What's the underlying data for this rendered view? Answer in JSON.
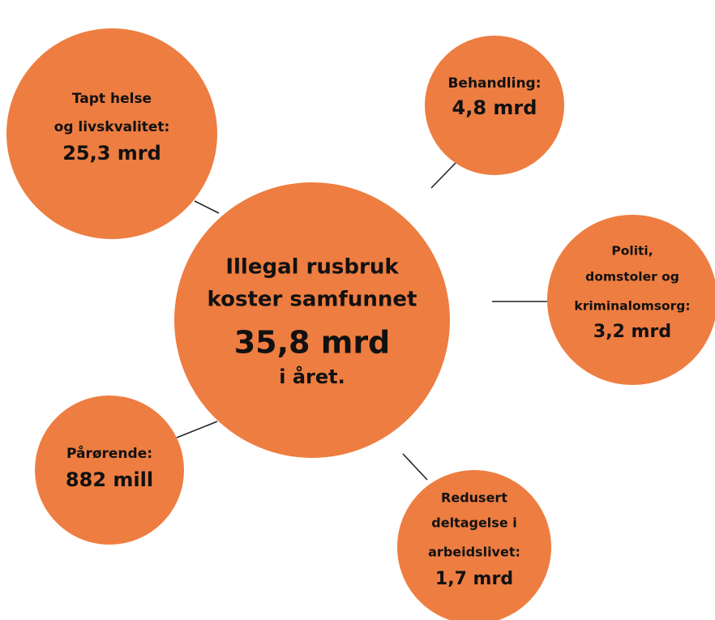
{
  "nodes": [
    {
      "label": [
        "Illegal rusbruk",
        "koster samfunnet"
      ],
      "amount": "35,8 mrd",
      "suffix": "i året."
    },
    {
      "label": [
        "Tapt helse",
        "og livskvalitet:"
      ],
      "amount": "25,3 mrd"
    },
    {
      "label": [
        "Behandling:"
      ],
      "amount": "4,8 mrd"
    },
    {
      "label": [
        "Politi,",
        "domstoler og",
        "kriminalomsorg:"
      ],
      "amount": "3,2 mrd"
    },
    {
      "label": [
        "Pårørende:"
      ],
      "amount": "882 mill"
    },
    {
      "label": [
        "Redusert",
        "deltagelse i",
        "arbeidslivet:"
      ],
      "amount": "1,7 mrd"
    }
  ]
}
